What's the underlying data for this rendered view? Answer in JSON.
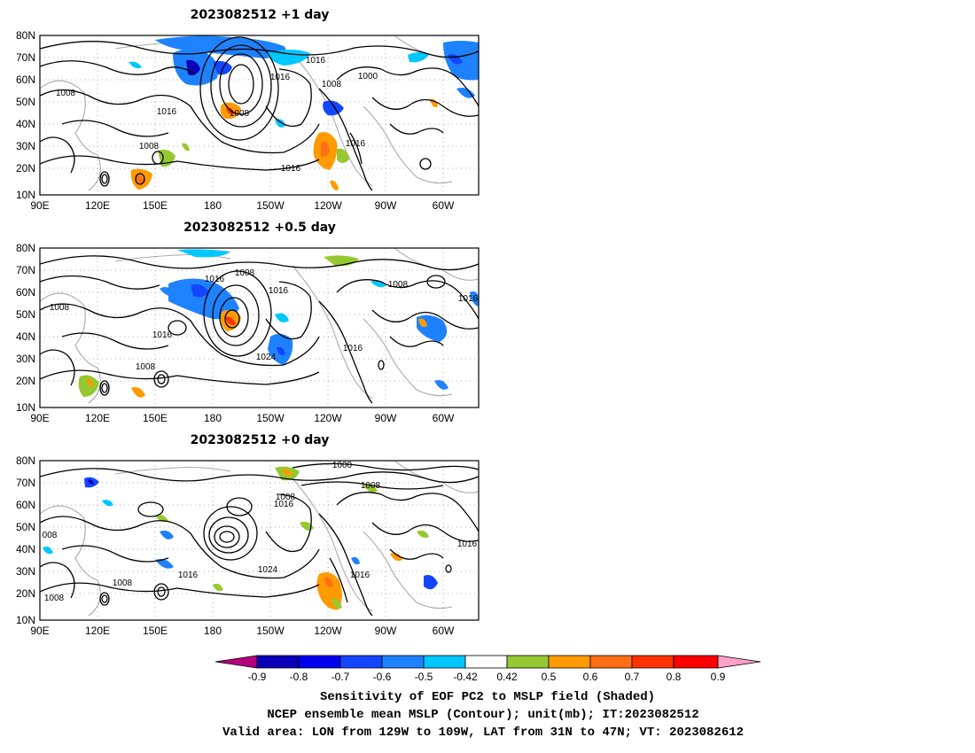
{
  "panels": [
    {
      "title": "2023082512  +1 day",
      "lat_labels": [
        "80N",
        "70N",
        "60N",
        "50N",
        "40N",
        "30N",
        "20N",
        "10N"
      ],
      "lon_labels": [
        "90E",
        "120E",
        "150E",
        "180",
        "150W",
        "120W",
        "90W",
        "60W"
      ],
      "contour_labels": [
        "1008",
        "1016",
        "1008",
        "1016",
        "1008",
        "1000",
        "1008",
        "1016",
        "1016",
        "1016"
      ]
    },
    {
      "title": "2023082512  +0.5 day",
      "lat_labels": [
        "80N",
        "70N",
        "60N",
        "50N",
        "40N",
        "30N",
        "20N",
        "10N"
      ],
      "lon_labels": [
        "90E",
        "120E",
        "150E",
        "180",
        "150W",
        "120W",
        "90W",
        "60W"
      ],
      "contour_labels": [
        "1008",
        "1016",
        "1016",
        "1008",
        "1016",
        "1008",
        "1024",
        "1016",
        "1016",
        "1008"
      ]
    },
    {
      "title": "2023082512  +0 day",
      "lat_labels": [
        "80N",
        "70N",
        "60N",
        "50N",
        "40N",
        "30N",
        "20N",
        "10N"
      ],
      "lon_labels": [
        "90E",
        "120E",
        "150E",
        "180",
        "150W",
        "120W",
        "90W",
        "60W"
      ],
      "contour_labels": [
        "1000",
        "1008",
        "1008",
        "1016",
        "008",
        "1016",
        "1024",
        "1016",
        "1016",
        "1008",
        "1008"
      ]
    }
  ],
  "colorbar": {
    "ticks": [
      "-0.9",
      "-0.8",
      "-0.7",
      "-0.6",
      "-0.5",
      "-0.42",
      "0.42",
      "0.5",
      "0.6",
      "0.7",
      "0.8",
      "0.9"
    ],
    "colors": [
      "#b4007f",
      "#0a00b9",
      "#0000f0",
      "#1446ff",
      "#1e82ff",
      "#00c8ff",
      "#ffffff",
      "#96c832",
      "#ff9b00",
      "#ff6e14",
      "#ff3200",
      "#ff0000",
      "#ffa0c8"
    ]
  },
  "caption": {
    "line1": "Sensitivity of EOF PC2 to MSLP field (Shaded)",
    "line2": "NCEP ensemble mean MSLP (Contour); unit(mb); IT:2023082512",
    "line3": "Valid area: LON from 129W to 109W, LAT from 31N to 47N; VT: 2023082612"
  }
}
